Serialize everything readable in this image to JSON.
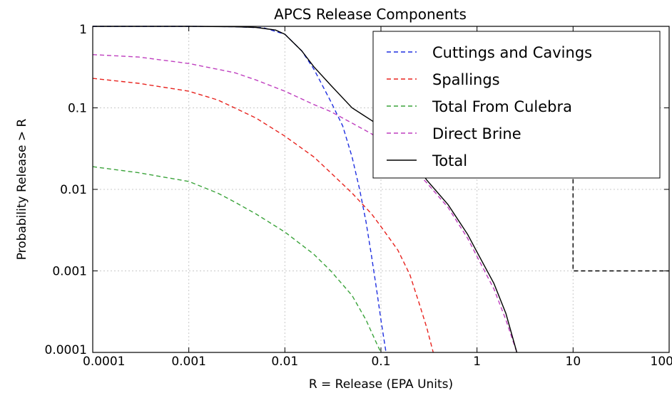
{
  "chart_data": {
    "type": "line",
    "title": "APCS Release Components",
    "xlabel": "R = Release (EPA Units)",
    "ylabel": "Probability Release > R",
    "xscale": "log",
    "yscale": "log",
    "xlim": [
      0.0001,
      100
    ],
    "ylim": [
      0.0001,
      1
    ],
    "x_ticks": [
      0.0001,
      0.001,
      0.01,
      0.1,
      1,
      10,
      100
    ],
    "x_tick_labels": [
      "0.0001",
      "0.001",
      "0.01",
      "0.1",
      "1",
      "10",
      "100"
    ],
    "y_ticks": [
      0.0001,
      0.001,
      0.01,
      0.1,
      1
    ],
    "y_tick_labels": [
      "0.0001",
      "0.001",
      "0.01",
      "0.1",
      "1"
    ],
    "grid": true,
    "legend_position": "top-right",
    "series": [
      {
        "name": "Cuttings and Cavings",
        "color": "#1f2fe0",
        "style": "dashed",
        "points": [
          [
            0.0001,
            1
          ],
          [
            0.001,
            1
          ],
          [
            0.003,
            0.99
          ],
          [
            0.006,
            0.96
          ],
          [
            0.01,
            0.8
          ],
          [
            0.015,
            0.5
          ],
          [
            0.02,
            0.3
          ],
          [
            0.03,
            0.12
          ],
          [
            0.04,
            0.06
          ],
          [
            0.05,
            0.025
          ],
          [
            0.06,
            0.01
          ],
          [
            0.07,
            0.004
          ],
          [
            0.08,
            0.0015
          ],
          [
            0.09,
            0.0006
          ],
          [
            0.1,
            0.00025
          ],
          [
            0.113,
            0.0001
          ]
        ]
      },
      {
        "name": "Spallings",
        "color": "#e8231e",
        "style": "dashed",
        "points": [
          [
            0.0001,
            0.23
          ],
          [
            0.0003,
            0.2
          ],
          [
            0.001,
            0.16
          ],
          [
            0.002,
            0.125
          ],
          [
            0.003,
            0.1
          ],
          [
            0.005,
            0.075
          ],
          [
            0.01,
            0.045
          ],
          [
            0.02,
            0.025
          ],
          [
            0.03,
            0.016
          ],
          [
            0.05,
            0.009
          ],
          [
            0.08,
            0.005
          ],
          [
            0.1,
            0.0035
          ],
          [
            0.15,
            0.0018
          ],
          [
            0.2,
            0.0009
          ],
          [
            0.25,
            0.0004
          ],
          [
            0.3,
            0.0002
          ],
          [
            0.35,
            0.0001
          ]
        ]
      },
      {
        "name": "Total From Culebra",
        "color": "#3aa33a",
        "style": "dashed",
        "points": [
          [
            0.0001,
            0.019
          ],
          [
            0.0003,
            0.016
          ],
          [
            0.001,
            0.0125
          ],
          [
            0.002,
            0.009
          ],
          [
            0.003,
            0.007
          ],
          [
            0.005,
            0.005
          ],
          [
            0.01,
            0.003
          ],
          [
            0.02,
            0.0016
          ],
          [
            0.03,
            0.001
          ],
          [
            0.05,
            0.0005
          ],
          [
            0.07,
            0.00025
          ],
          [
            0.09,
            0.00013
          ],
          [
            0.1,
            0.0001
          ]
        ]
      },
      {
        "name": "Direct Brine",
        "color": "#bf3fbf",
        "style": "dashed",
        "points": [
          [
            0.0001,
            0.45
          ],
          [
            0.0003,
            0.42
          ],
          [
            0.001,
            0.35
          ],
          [
            0.003,
            0.27
          ],
          [
            0.005,
            0.22
          ],
          [
            0.01,
            0.16
          ],
          [
            0.02,
            0.11
          ],
          [
            0.03,
            0.09
          ],
          [
            0.05,
            0.065
          ],
          [
            0.08,
            0.048
          ],
          [
            0.1,
            0.04
          ],
          [
            0.2,
            0.02
          ],
          [
            0.3,
            0.012
          ],
          [
            0.5,
            0.006
          ],
          [
            0.8,
            0.0025
          ],
          [
            1,
            0.0015
          ],
          [
            1.5,
            0.0006
          ],
          [
            2,
            0.00025
          ],
          [
            2.6,
            0.0001
          ]
        ]
      },
      {
        "name": "Total",
        "color": "#000000",
        "style": "solid",
        "points": [
          [
            0.0001,
            1
          ],
          [
            0.001,
            1
          ],
          [
            0.003,
            0.99
          ],
          [
            0.005,
            0.97
          ],
          [
            0.008,
            0.9
          ],
          [
            0.01,
            0.8
          ],
          [
            0.015,
            0.5
          ],
          [
            0.02,
            0.32
          ],
          [
            0.03,
            0.19
          ],
          [
            0.05,
            0.1
          ],
          [
            0.08,
            0.07
          ],
          [
            0.1,
            0.058
          ],
          [
            0.15,
            0.04
          ],
          [
            0.2,
            0.025
          ],
          [
            0.3,
            0.013
          ],
          [
            0.5,
            0.0065
          ],
          [
            0.8,
            0.0028
          ],
          [
            1,
            0.0017
          ],
          [
            1.5,
            0.0007
          ],
          [
            2,
            0.0003
          ],
          [
            2.6,
            0.0001
          ]
        ]
      },
      {
        "name": "",
        "color": "#000000",
        "style": "dashed",
        "points": [
          [
            10,
            0.1
          ],
          [
            10,
            0.001
          ],
          [
            100,
            0.001
          ]
        ]
      }
    ]
  }
}
